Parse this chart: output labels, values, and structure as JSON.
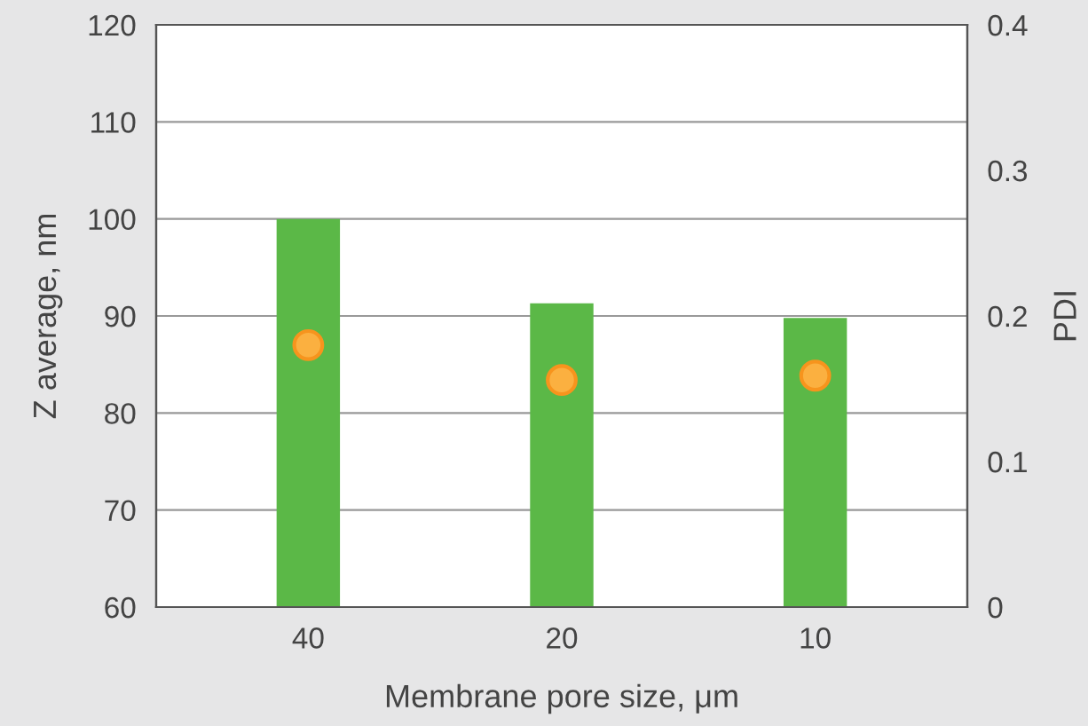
{
  "chart_data": {
    "type": "bar",
    "xlabel": "Membrane pore size, μm",
    "ylabel": "Z average, nm",
    "y2label": "PDI",
    "categories": [
      "40",
      "20",
      "10"
    ],
    "series": [
      {
        "color": "#5bb847",
        "values": [
          100,
          91.3,
          89.8
        ]
      },
      {
        "type": "scatter",
        "axis": "y2",
        "color": "#fbb040",
        "values": [
          0.18,
          0.156,
          0.159
        ]
      }
    ],
    "ylim": [
      60,
      120
    ],
    "yticks": [
      60,
      70,
      80,
      90,
      100,
      110,
      120
    ],
    "y2lim": [
      0,
      0.4
    ],
    "y2ticks": [
      0,
      0.1,
      0.2,
      0.3,
      0.4
    ],
    "grid": "y",
    "marker": "circle",
    "legend": false
  }
}
